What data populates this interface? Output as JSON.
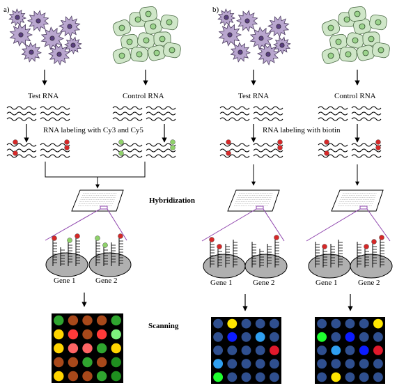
{
  "panels": {
    "a_label": "a)",
    "b_label": "b)"
  },
  "labels": {
    "test_rna": "Test RNA",
    "control_rna": "Control RNA",
    "labeling_cy": "RNA labeling with Cy3 and Cy5",
    "labeling_biotin": "RNA labeling with biotin",
    "hybridization": "Hybridization",
    "scanning": "Scanning",
    "gene1": "Gene 1",
    "gene2": "Gene 2"
  },
  "colors": {
    "cancer_cell": "#b9a6cf",
    "normal_cell": "#cfe6c8",
    "red_label": "#d62828",
    "green_label": "#8fd16a",
    "purple_line": "#8e44ad",
    "chip_bg": "#000000"
  },
  "arrays": {
    "a": [
      [
        "#2fa52f",
        "#a8481a",
        "#a8481a",
        "#a8481a",
        "#2fa52f"
      ],
      [
        "#ffd400",
        "#ff3a3a",
        "#a8481a",
        "#ff3a3a",
        "#7df07d"
      ],
      [
        "#ffd400",
        "#ff6464",
        "#ff6464",
        "#2fa52f",
        "#ffd400"
      ],
      [
        "#a8481a",
        "#a8481a",
        "#2fa52f",
        "#a8481a",
        "#1f8f1f"
      ],
      [
        "#ffd400",
        "#a8481a",
        "#a8481a",
        "#2fa52f",
        "#1f8f1f"
      ]
    ],
    "b1": [
      [
        "#2f4f8f",
        "#ffe600",
        "#2f4f8f",
        "#2f4f8f",
        "#2f4f8f"
      ],
      [
        "#2f4f8f",
        "#0c1cff",
        "#2f4f8f",
        "#2f9ff0",
        "#2f4f8f"
      ],
      [
        "#2f4f8f",
        "#2f4f8f",
        "#2f4f8f",
        "#2f4f8f",
        "#e0192b"
      ],
      [
        "#2f9ff0",
        "#2f4f8f",
        "#2f4f8f",
        "#2f4f8f",
        "#2f4f8f"
      ],
      [
        "#1fff2f",
        "#2f4f8f",
        "#2f4f8f",
        "#2f4f8f",
        "#2f4f8f"
      ]
    ],
    "b2": [
      [
        "#2f4f8f",
        "#2f4f8f",
        "#2f4f8f",
        "#2f4f8f",
        "#ffe600"
      ],
      [
        "#1fff2f",
        "#2f4f8f",
        "#0c1cff",
        "#2f4f8f",
        "#2f4f8f"
      ],
      [
        "#2f4f8f",
        "#2f9ff0",
        "#2f4f8f",
        "#0c1cff",
        "#e0192b"
      ],
      [
        "#2f4f8f",
        "#2f4f8f",
        "#2f4f8f",
        "#2f4f8f",
        "#2f4f8f"
      ],
      [
        "#2f4f8f",
        "#ffe600",
        "#2f4f8f",
        "#2f4f8f",
        "#2f4f8f"
      ]
    ]
  }
}
